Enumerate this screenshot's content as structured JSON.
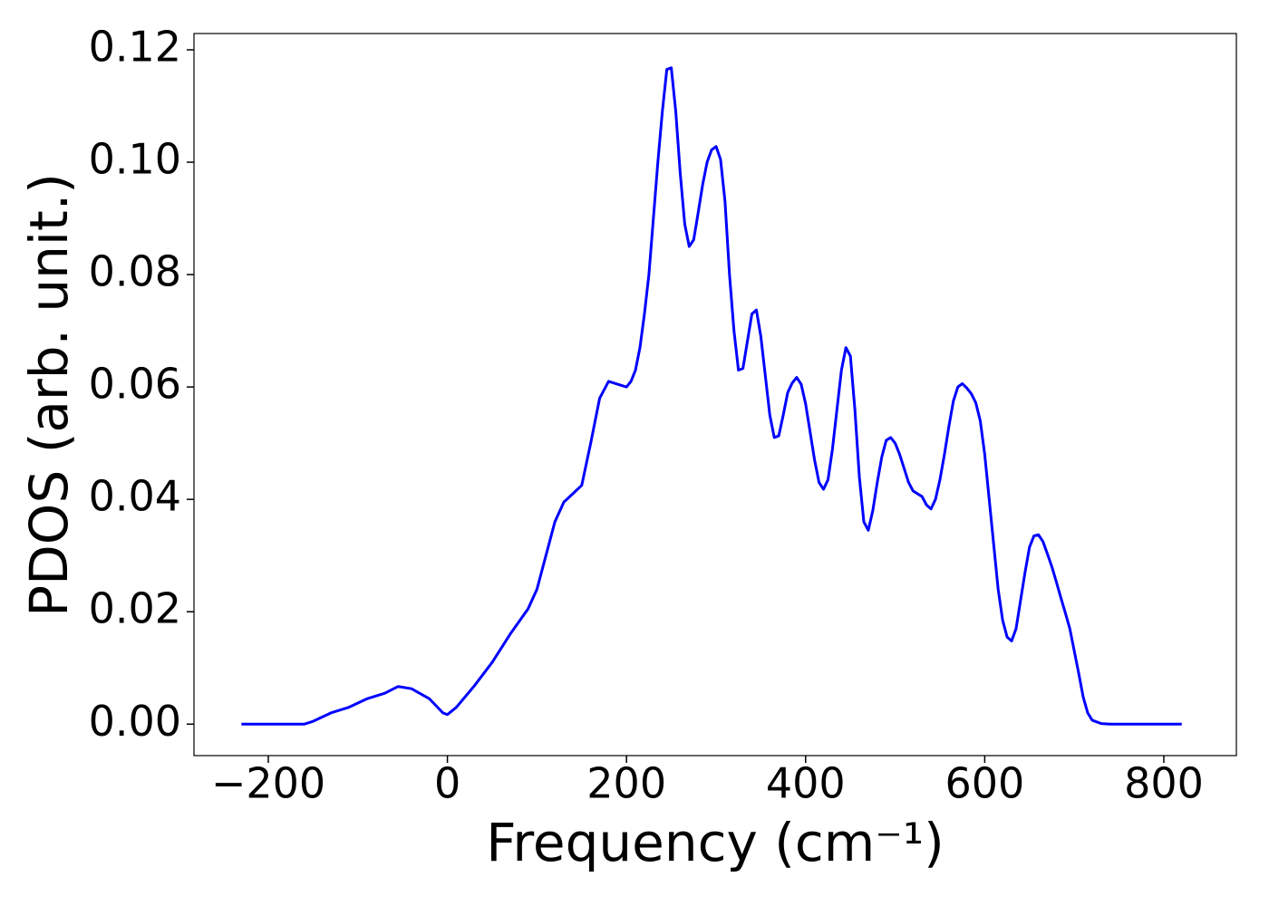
{
  "chart_data": {
    "type": "line",
    "xlabel": "Frequency (cm⁻¹)",
    "ylabel": "PDOS (arb. unit.)",
    "xlim": [
      -283,
      881
    ],
    "ylim": [
      -0.0056,
      0.1229
    ],
    "xticks": [
      {
        "value": -200,
        "label": "−200"
      },
      0,
      200,
      400,
      600,
      800
    ],
    "yticks": [
      {
        "value": 0,
        "label": "0.00"
      },
      {
        "value": 0.02,
        "label": "0.02"
      },
      {
        "value": 0.04,
        "label": "0.04"
      },
      {
        "value": 0.06,
        "label": "0.06"
      },
      {
        "value": 0.08,
        "label": "0.08"
      },
      {
        "value": 0.1,
        "label": "0.10"
      },
      {
        "value": 0.12,
        "label": "0.12"
      }
    ],
    "x": [
      -230,
      -160,
      -150,
      -130,
      -110,
      -90,
      -70,
      -55,
      -40,
      -20,
      -5,
      0,
      10,
      30,
      50,
      70,
      90,
      100,
      110,
      120,
      130,
      140,
      150,
      160,
      170,
      180,
      190,
      200,
      205,
      210,
      215,
      220,
      225,
      230,
      235,
      240,
      245,
      250,
      255,
      260,
      265,
      270,
      275,
      280,
      285,
      290,
      295,
      300,
      305,
      310,
      315,
      320,
      325,
      330,
      340,
      345,
      350,
      355,
      360,
      365,
      370,
      375,
      380,
      385,
      390,
      395,
      400,
      405,
      410,
      415,
      420,
      425,
      430,
      435,
      440,
      445,
      450,
      455,
      460,
      465,
      470,
      475,
      480,
      485,
      490,
      495,
      500,
      505,
      510,
      515,
      520,
      525,
      530,
      535,
      540,
      545,
      550,
      555,
      560,
      565,
      570,
      575,
      580,
      585,
      590,
      595,
      600,
      605,
      610,
      615,
      620,
      625,
      630,
      635,
      640,
      645,
      650,
      655,
      660,
      665,
      670,
      675,
      680,
      685,
      690,
      695,
      700,
      705,
      710,
      715,
      720,
      730,
      740,
      820
    ],
    "series": [
      {
        "color": "#0000ff",
        "values": [
          0,
          0,
          0.0005,
          0.002,
          0.003,
          0.0045,
          0.0055,
          0.0067,
          0.0063,
          0.0045,
          0.002,
          0.0017,
          0.003,
          0.0068,
          0.011,
          0.016,
          0.0205,
          0.024,
          0.03,
          0.036,
          0.0395,
          0.041,
          0.0425,
          0.05,
          0.058,
          0.061,
          0.0605,
          0.06,
          0.061,
          0.063,
          0.067,
          0.073,
          0.08,
          0.09,
          0.1,
          0.109,
          0.1165,
          0.1168,
          0.109,
          0.098,
          0.089,
          0.085,
          0.0862,
          0.091,
          0.096,
          0.1,
          0.1022,
          0.1028,
          0.1005,
          0.093,
          0.08,
          0.07,
          0.063,
          0.0633,
          0.073,
          0.0737,
          0.069,
          0.062,
          0.055,
          0.051,
          0.0513,
          0.055,
          0.059,
          0.0607,
          0.0617,
          0.0605,
          0.057,
          0.052,
          0.047,
          0.043,
          0.0418,
          0.0435,
          0.049,
          0.056,
          0.063,
          0.067,
          0.0655,
          0.056,
          0.044,
          0.036,
          0.0345,
          0.038,
          0.043,
          0.0475,
          0.0505,
          0.051,
          0.05,
          0.048,
          0.0455,
          0.043,
          0.0415,
          0.041,
          0.0405,
          0.039,
          0.0383,
          0.04,
          0.0435,
          0.048,
          0.053,
          0.0575,
          0.06,
          0.0606,
          0.0598,
          0.0588,
          0.0572,
          0.054,
          0.048,
          0.04,
          0.032,
          0.024,
          0.0185,
          0.0155,
          0.0148,
          0.017,
          0.022,
          0.027,
          0.0315,
          0.0335,
          0.0337,
          0.0325,
          0.0303,
          0.028,
          0.0253,
          0.0225,
          0.0198,
          0.017,
          0.013,
          0.009,
          0.0048,
          0.002,
          0.0007,
          0.0001,
          0,
          0
        ]
      }
    ]
  }
}
